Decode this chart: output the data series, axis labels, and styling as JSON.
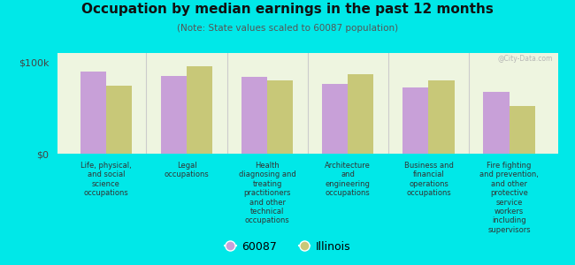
{
  "title": "Occupation by median earnings in the past 12 months",
  "subtitle": "(Note: State values scaled to 60087 population)",
  "background_color": "#00e8e8",
  "plot_bg_top": "#d8ecc0",
  "plot_bg_bottom": "#eef5e0",
  "bar_color_60087": "#c8a0d8",
  "bar_color_illinois": "#c8c878",
  "categories": [
    "Life, physical,\nand social\nscience\noccupations",
    "Legal\noccupations",
    "Health\ndiagnosing and\ntreating\npractitioners\nand other\ntechnical\noccupations",
    "Architecture\nand\nengineering\noccupations",
    "Business and\nfinancial\noperations\noccupations",
    "Fire fighting\nand prevention,\nand other\nprotective\nservice\nworkers\nincluding\nsupervisors"
  ],
  "values_60087": [
    90000,
    85000,
    84000,
    76000,
    72000,
    68000
  ],
  "values_illinois": [
    74000,
    96000,
    80000,
    87000,
    80000,
    52000
  ],
  "ylim": [
    0,
    110000
  ],
  "yticks": [
    0,
    100000
  ],
  "ytick_labels": [
    "$0",
    "$100k"
  ],
  "legend_labels": [
    "60087",
    "Illinois"
  ],
  "watermark": "@City-Data.com"
}
